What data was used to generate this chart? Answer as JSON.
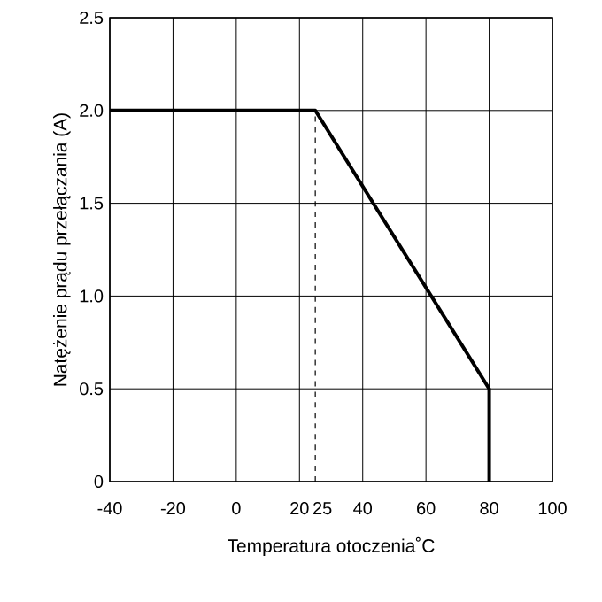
{
  "chart_data": {
    "type": "line",
    "xlabel": "Temperatura otoczenia˚C",
    "ylabel": "Natężenie prądu przełączania (A)",
    "x": [
      -40,
      25,
      80,
      80
    ],
    "series": [
      {
        "color": "#000000",
        "values": [
          2.0,
          2.0,
          0.5,
          0
        ]
      }
    ],
    "xlim": [
      -40,
      100
    ],
    "ylim": [
      0,
      2.5
    ],
    "xticks": [
      -40,
      -20,
      0,
      20,
      25,
      40,
      60,
      80,
      100
    ],
    "yticks": [
      {
        "value": 0,
        "label": "0"
      },
      {
        "value": 0.5,
        "label": "0.5"
      },
      {
        "value": 1,
        "label": "1.0"
      },
      {
        "value": 1.5,
        "label": "1.5"
      },
      {
        "value": 2,
        "label": "2.0"
      },
      {
        "value": 2.5,
        "label": "2.5"
      }
    ],
    "ref_lines": [
      {
        "axis": "x",
        "value": 25,
        "line_style": "dashed",
        "color": "#000000"
      }
    ],
    "grid": true,
    "marker": "none",
    "line_style": "solid"
  }
}
